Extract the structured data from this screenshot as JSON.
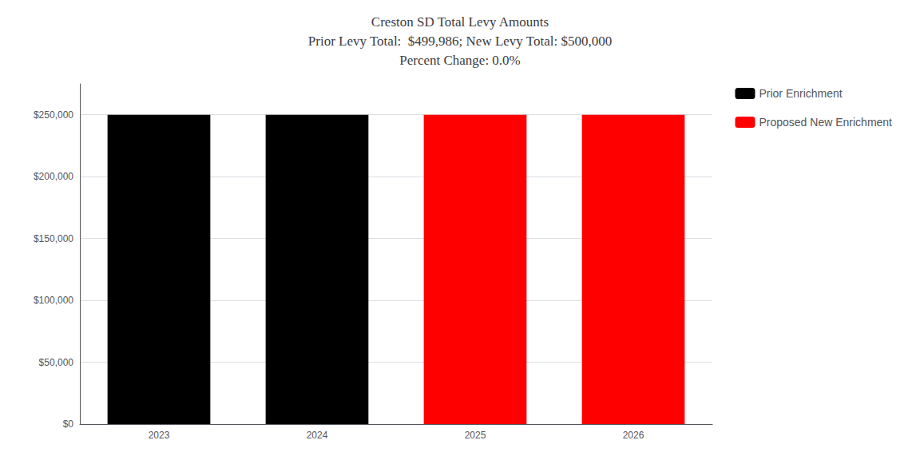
{
  "chart_data": {
    "type": "bar",
    "title": "Creston SD Total Levy Amounts\nPrior Levy Total:  $499,986; New Levy Total: $500,000\nPercent Change: 0.0%",
    "categories": [
      "2023",
      "2024",
      "2025",
      "2026"
    ],
    "series": [
      {
        "name": "Prior Enrichment",
        "color": "#000000",
        "values": [
          249993,
          249993,
          null,
          null
        ]
      },
      {
        "name": "Proposed New Enrichment",
        "color": "#ff0000",
        "values": [
          null,
          null,
          250000,
          250000
        ]
      }
    ],
    "ylim": [
      0,
      275000
    ],
    "yticks": [
      {
        "value": 0,
        "label": "$0"
      },
      {
        "value": 50000,
        "label": "$50,000"
      },
      {
        "value": 100000,
        "label": "$100,000"
      },
      {
        "value": 150000,
        "label": "$150,000"
      },
      {
        "value": 200000,
        "label": "$200,000"
      },
      {
        "value": 250000,
        "label": "$250,000"
      }
    ],
    "grid": true,
    "legend": "upper right"
  }
}
